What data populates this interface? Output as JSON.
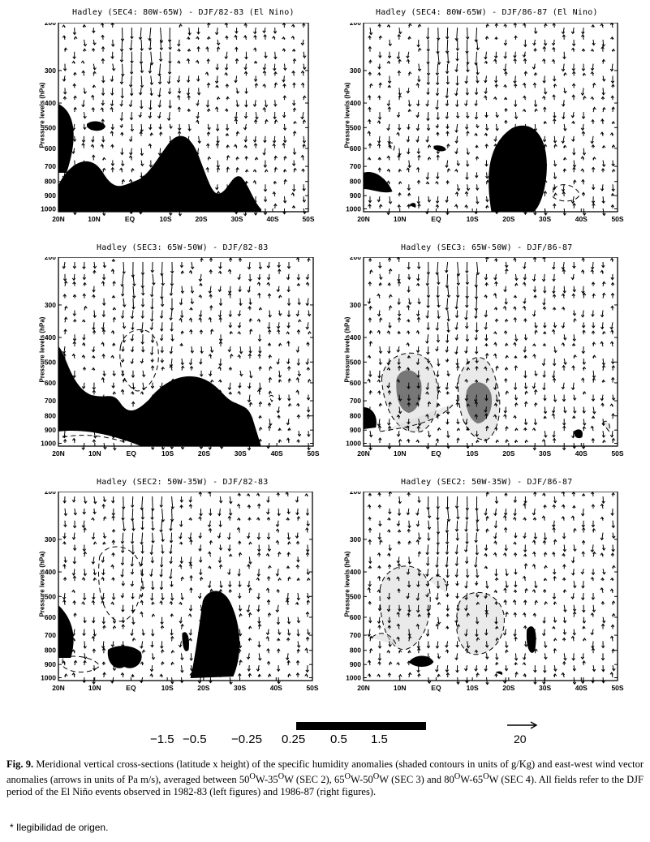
{
  "panels": [
    {
      "id": "p1",
      "title": "Hadley (SEC4: 80W-65W) - DJF/82-83 (El Nino)"
    },
    {
      "id": "p2",
      "title": "Hadley (SEC4: 80W-65W) - DJF/86-87 (El Nino)"
    },
    {
      "id": "p3",
      "title": "Hadley (SEC3: 65W-50W) - DJF/82-83"
    },
    {
      "id": "p4",
      "title": "Hadley (SEC3: 65W-50W) - DJF/86-87"
    },
    {
      "id": "p5",
      "title": "Hadley (SEC2: 50W-35W) - DJF/82-83"
    },
    {
      "id": "p6",
      "title": "Hadley (SEC2: 50W-35W) - DJF/86-87"
    }
  ],
  "y_axis_label": "Pressure levels (hPa)",
  "y_ticks": [
    "200",
    "300",
    "400",
    "500",
    "600",
    "700",
    "800",
    "900",
    "1000"
  ],
  "x_ticks": [
    "20N",
    "10N",
    "EQ",
    "10S",
    "20S",
    "30S",
    "40S",
    "50S"
  ],
  "scale": {
    "labels": [
      "−1.5",
      "−0.5",
      "−0.25",
      "0.25",
      "0.5",
      "1.5"
    ],
    "vector_ref": "20"
  },
  "caption": {
    "label": "Fig. 9.",
    "text_parts": [
      "Meridional vertical cross-sections (latitude x height) of the specific humidity anomalies (shaded contours in units of g/Kg) and east-west wind vector anomalies (arrows in units of Pa m/s), averaged between 50",
      "O",
      "W-35",
      "O",
      "W (SEC 2), 65",
      "O",
      "W-50",
      "O",
      "W (SEC 3) and 80",
      "O",
      "W-65",
      "O",
      "W (SEC 4). All fields refer to the DJF period of the El Niño events observed in 1982-83 (left figures) and 1986-87 (right figures)."
    ]
  },
  "note": "* Ilegibilidad de origen."
}
